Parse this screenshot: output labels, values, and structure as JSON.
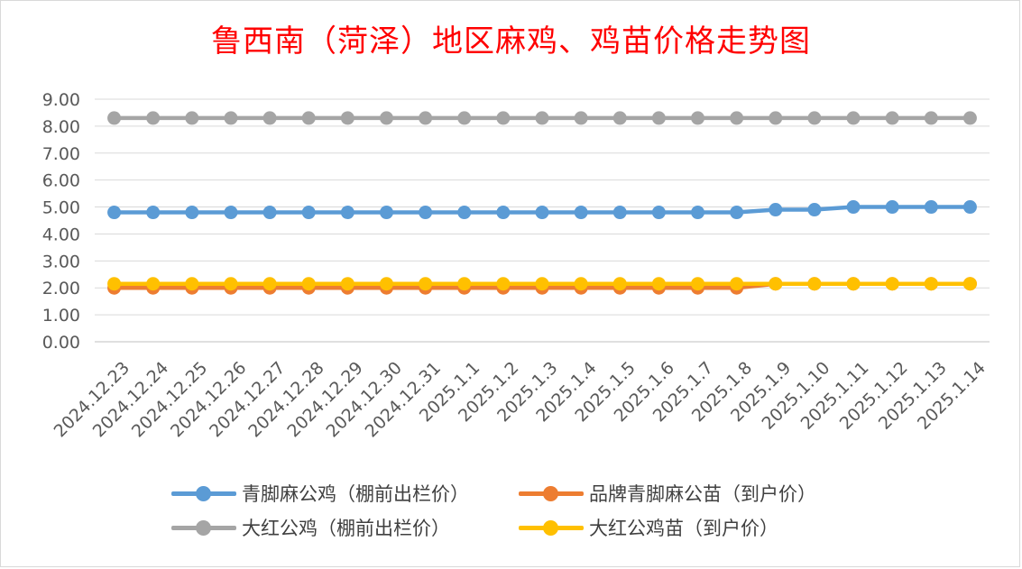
{
  "chart_data": {
    "type": "line",
    "title": "鲁西南（菏泽）地区麻鸡、鸡苗价格走势图",
    "categories": [
      "2024.12.23",
      "2024.12.24",
      "2024.12.25",
      "2024.12.26",
      "2024.12.27",
      "2024.12.28",
      "2024.12.29",
      "2024.12.30",
      "2024.12.31",
      "2025.1.1",
      "2025.1.2",
      "2025.1.3",
      "2025.1.4",
      "2025.1.5",
      "2025.1.6",
      "2025.1.7",
      "2025.1.8",
      "2025.1.9",
      "2025.1.10",
      "2025.1.11",
      "2025.1.12",
      "2025.1.13",
      "2025.1.14"
    ],
    "y_ticks": [
      "0.00",
      "1.00",
      "2.00",
      "3.00",
      "4.00",
      "5.00",
      "6.00",
      "7.00",
      "8.00",
      "9.00"
    ],
    "ylim": [
      0,
      9
    ],
    "grid": true,
    "legend_position": "bottom",
    "series": [
      {
        "name": "青脚麻公鸡（棚前出栏价）",
        "color": "#5b9bd5",
        "values": [
          4.8,
          4.8,
          4.8,
          4.8,
          4.8,
          4.8,
          4.8,
          4.8,
          4.8,
          4.8,
          4.8,
          4.8,
          4.8,
          4.8,
          4.8,
          4.8,
          4.8,
          4.9,
          4.9,
          5.0,
          5.0,
          5.0,
          5.0
        ]
      },
      {
        "name": "品牌青脚麻公苗（到户价）",
        "color": "#ed7d31",
        "values": [
          2.0,
          2.0,
          2.0,
          2.0,
          2.0,
          2.0,
          2.0,
          2.0,
          2.0,
          2.0,
          2.0,
          2.0,
          2.0,
          2.0,
          2.0,
          2.0,
          2.0,
          2.15,
          2.15,
          2.15,
          2.15,
          2.15,
          2.15
        ]
      },
      {
        "name": "大红公鸡（棚前出栏价）",
        "color": "#a5a5a5",
        "values": [
          8.3,
          8.3,
          8.3,
          8.3,
          8.3,
          8.3,
          8.3,
          8.3,
          8.3,
          8.3,
          8.3,
          8.3,
          8.3,
          8.3,
          8.3,
          8.3,
          8.3,
          8.3,
          8.3,
          8.3,
          8.3,
          8.3,
          8.3
        ]
      },
      {
        "name": "大红公鸡苗（到户价）",
        "color": "#ffc000",
        "values": [
          2.15,
          2.15,
          2.15,
          2.15,
          2.15,
          2.15,
          2.15,
          2.15,
          2.15,
          2.15,
          2.15,
          2.15,
          2.15,
          2.15,
          2.15,
          2.15,
          2.15,
          2.15,
          2.15,
          2.15,
          2.15,
          2.15,
          2.15
        ]
      }
    ]
  }
}
